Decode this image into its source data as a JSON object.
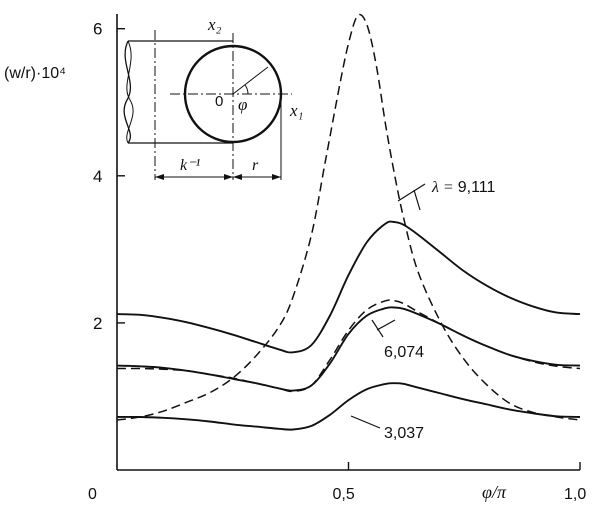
{
  "chart_data": {
    "type": "line",
    "ylabel": "(w/r)·10⁴",
    "xlabel": "φ/π",
    "xlim": [
      0,
      1.0
    ],
    "ylim": [
      0,
      6.2
    ],
    "x_ticks": [
      {
        "value": 0,
        "label": "0"
      },
      {
        "value": 0.5,
        "label": "0,5"
      },
      {
        "value": 1.0,
        "label": "1,0"
      }
    ],
    "y_ticks": [
      {
        "value": 2,
        "label": "2"
      },
      {
        "value": 4,
        "label": "4"
      },
      {
        "value": 6,
        "label": "6"
      }
    ],
    "grid": false,
    "legend": "none",
    "series": [
      {
        "name": "9,111",
        "style": "solid",
        "x": [
          0,
          0.05,
          0.1,
          0.15,
          0.2,
          0.25,
          0.3,
          0.35,
          0.38,
          0.42,
          0.46,
          0.5,
          0.54,
          0.58,
          0.6,
          0.62,
          0.65,
          0.7,
          0.75,
          0.8,
          0.85,
          0.9,
          0.95,
          1.0
        ],
        "y": [
          2.12,
          2.11,
          2.07,
          2.01,
          1.93,
          1.84,
          1.74,
          1.64,
          1.6,
          1.7,
          2.1,
          2.65,
          3.1,
          3.35,
          3.37,
          3.33,
          3.2,
          2.95,
          2.7,
          2.5,
          2.34,
          2.22,
          2.14,
          2.12
        ]
      },
      {
        "name": "6,074",
        "style": "solid",
        "x": [
          0,
          0.05,
          0.1,
          0.15,
          0.2,
          0.25,
          0.3,
          0.35,
          0.38,
          0.42,
          0.46,
          0.5,
          0.54,
          0.58,
          0.6,
          0.62,
          0.65,
          0.7,
          0.75,
          0.8,
          0.85,
          0.9,
          0.95,
          1.0
        ],
        "y": [
          1.42,
          1.41,
          1.39,
          1.35,
          1.3,
          1.24,
          1.18,
          1.11,
          1.08,
          1.15,
          1.45,
          1.85,
          2.1,
          2.2,
          2.21,
          2.19,
          2.12,
          1.98,
          1.82,
          1.68,
          1.56,
          1.48,
          1.43,
          1.42
        ]
      },
      {
        "name": "3,037",
        "style": "solid",
        "x": [
          0,
          0.05,
          0.1,
          0.15,
          0.2,
          0.25,
          0.3,
          0.35,
          0.38,
          0.42,
          0.46,
          0.5,
          0.54,
          0.58,
          0.6,
          0.62,
          0.65,
          0.7,
          0.75,
          0.8,
          0.85,
          0.9,
          0.95,
          1.0
        ],
        "y": [
          0.72,
          0.72,
          0.71,
          0.69,
          0.66,
          0.62,
          0.59,
          0.56,
          0.55,
          0.6,
          0.75,
          0.95,
          1.1,
          1.17,
          1.18,
          1.17,
          1.12,
          1.04,
          0.96,
          0.89,
          0.82,
          0.77,
          0.73,
          0.72
        ]
      },
      {
        "name": "",
        "style": "dashed",
        "x": [
          0,
          0.05,
          0.1,
          0.15,
          0.2,
          0.25,
          0.3,
          0.35,
          0.38,
          0.42,
          0.46,
          0.5,
          0.54,
          0.58,
          0.6,
          0.62,
          0.65,
          0.7,
          0.75,
          0.8,
          0.85,
          0.9,
          0.95,
          1.0
        ],
        "y": [
          1.38,
          1.38,
          1.37,
          1.35,
          1.3,
          1.25,
          1.18,
          1.11,
          1.07,
          1.15,
          1.5,
          1.9,
          2.18,
          2.3,
          2.3,
          2.26,
          2.15,
          1.98,
          1.82,
          1.68,
          1.56,
          1.47,
          1.41,
          1.38
        ]
      },
      {
        "name": "",
        "style": "dashed",
        "x": [
          0,
          0.05,
          0.1,
          0.15,
          0.2,
          0.25,
          0.3,
          0.35,
          0.38,
          0.42,
          0.45,
          0.48,
          0.5,
          0.52,
          0.54,
          0.56,
          0.58,
          0.6,
          0.62,
          0.65,
          0.7,
          0.75,
          0.8,
          0.85,
          0.9,
          0.95,
          1.0
        ],
        "y": [
          0.68,
          0.72,
          0.8,
          0.92,
          1.05,
          1.25,
          1.55,
          1.95,
          2.35,
          3.2,
          4.2,
          5.2,
          5.8,
          6.18,
          6.05,
          5.5,
          4.7,
          4.0,
          3.4,
          2.7,
          2.0,
          1.5,
          1.15,
          0.9,
          0.78,
          0.72,
          0.68
        ]
      }
    ],
    "series_labels": [
      {
        "prefix": "λ = ",
        "value": "9,111"
      },
      {
        "prefix": "",
        "value": "6,074"
      },
      {
        "prefix": "",
        "value": "3,037"
      }
    ],
    "inset": {
      "axis1": "x₁",
      "axis2": "x₂",
      "origin": "0",
      "angle": "φ",
      "dim_left": "k⁻¹",
      "dim_right": "r"
    }
  }
}
